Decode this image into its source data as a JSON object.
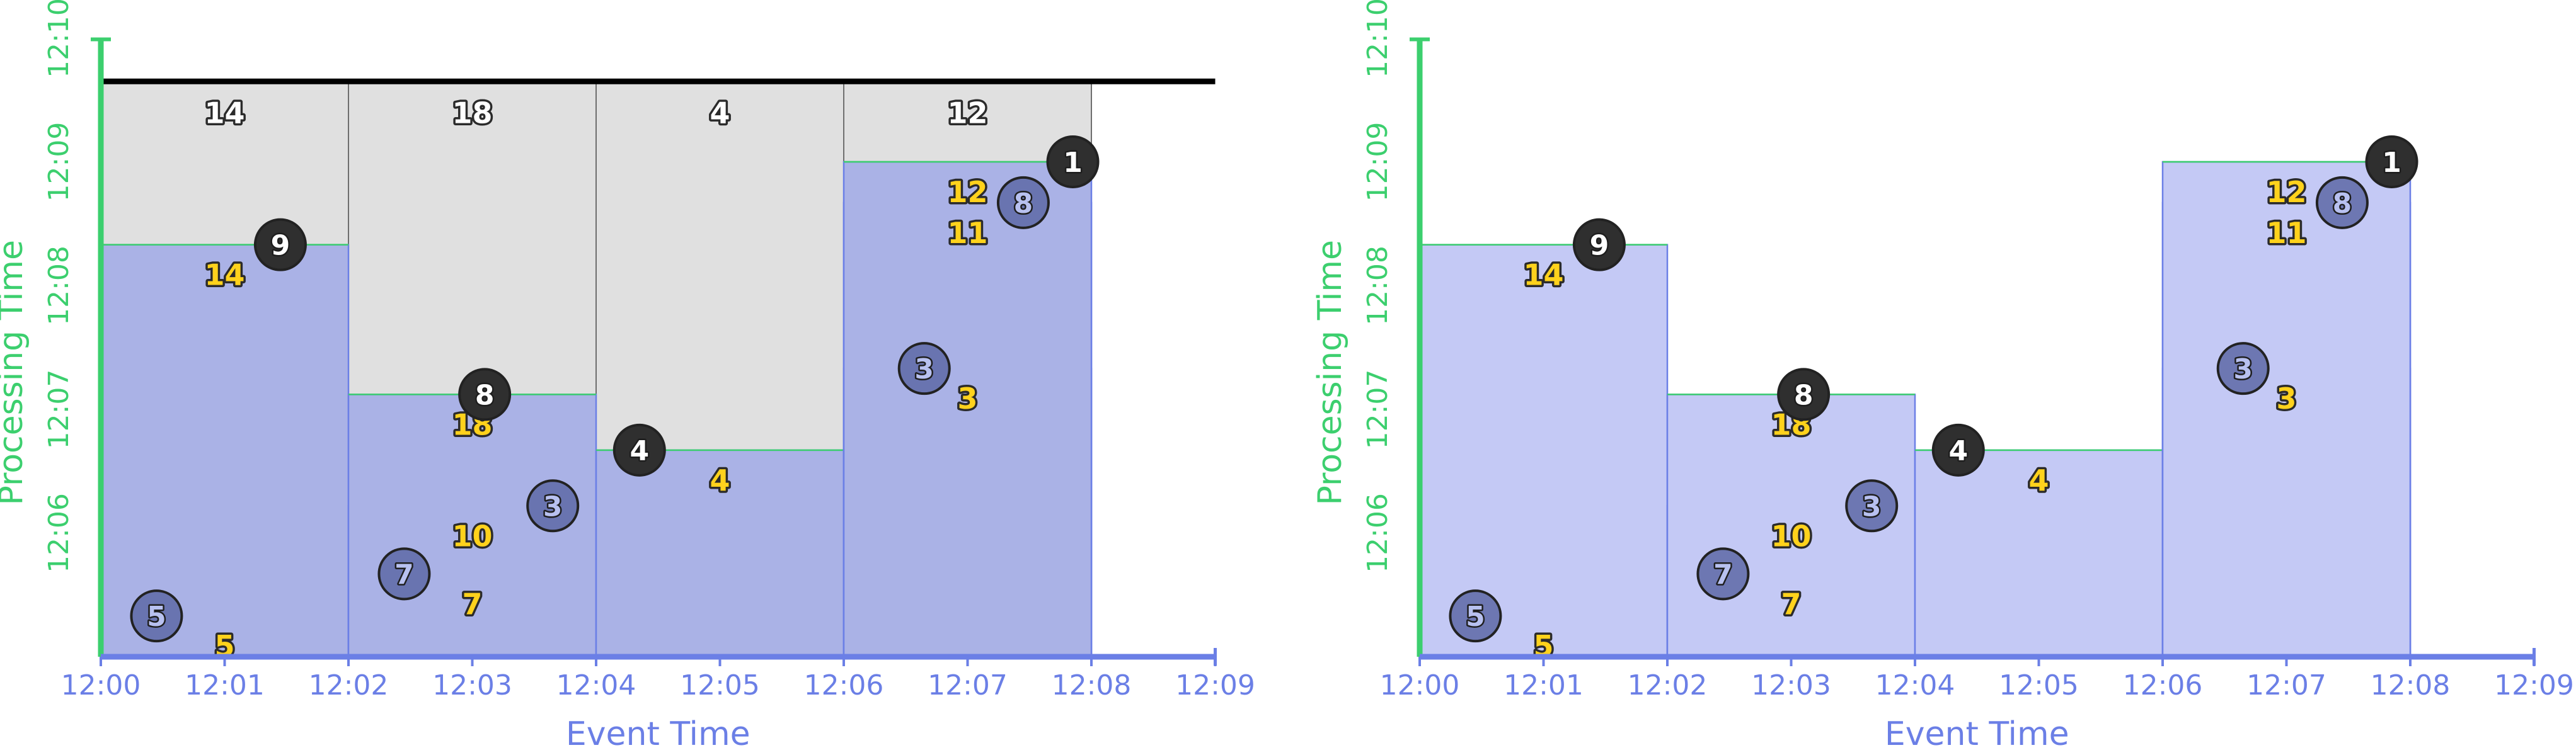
{
  "colors": {
    "processing_axis": "#3ccf6e",
    "event_axis": "#6b7fe6",
    "watermark": "#000000",
    "pane_done": "#e0e0e0",
    "pane_done_border": "#6e6e6e",
    "pane_fill_1": "#aab2e6",
    "pane_fill_2": "#949fe8",
    "pane_fill_3": "#8794ea",
    "pane_fill_right_1": "#c4c9f5",
    "pane_fill_right_2": "#9fa9ec",
    "pane_border": "#6b7fe6",
    "result_text": "#ffd21c",
    "onmark_circle": "#2f2f2f",
    "offmark_circle": "#5e68a6",
    "circle_text": "#ffffff"
  },
  "chart_data": [
    {
      "type": "area",
      "xlabel": "Event Time",
      "ylabel": "Processing Time",
      "x_ticks": [
        "12:00",
        "12:01",
        "12:02",
        "12:03",
        "12:04",
        "12:05",
        "12:06",
        "12:07",
        "12:08",
        "12:09"
      ],
      "y_ticks": [
        "12:06",
        "12:07",
        "12:08",
        "12:09",
        "12:10"
      ],
      "xlim_minutes": [
        0,
        9
      ],
      "ylim_minutes": [
        5,
        10
      ],
      "watermark_at": 9.65,
      "windows": [
        {
          "window": "12:00-12:02",
          "start": 0,
          "end": 2,
          "completed_label": "14",
          "levels": [
            {
              "time": 5.33,
              "sum": "5",
              "datum": "5",
              "datum_x": 0.45,
              "datum_on_time": false
            },
            {
              "time": 8.33,
              "sum": "14",
              "datum": "9",
              "datum_x": 1.45,
              "datum_on_time": true
            }
          ]
        },
        {
          "window": "12:02-12:04",
          "start": 2,
          "end": 4,
          "completed_label": "18",
          "levels": [
            {
              "time": 5.67,
              "sum": "7",
              "datum": "7",
              "datum_x": 2.45,
              "datum_on_time": false
            },
            {
              "time": 6.22,
              "sum": "10",
              "datum": "3",
              "datum_x": 3.65,
              "datum_on_time": false
            },
            {
              "time": 7.12,
              "sum": "18",
              "datum": "8",
              "datum_x": 3.1,
              "datum_on_time": true
            }
          ]
        },
        {
          "window": "12:04-12:06",
          "start": 4,
          "end": 6,
          "completed_label": "4",
          "levels": [
            {
              "time": 6.67,
              "sum": "4",
              "datum": "4",
              "datum_x": 4.35,
              "datum_on_time": true
            }
          ]
        },
        {
          "window": "12:06-12:08",
          "start": 6,
          "end": 8,
          "completed_label": "12",
          "levels": [
            {
              "time": 7.33,
              "sum": "3",
              "datum": "3",
              "datum_x": 6.65,
              "datum_on_time": false
            },
            {
              "time": 8.67,
              "sum": "11",
              "datum": "8",
              "datum_x": 7.45,
              "datum_on_time": false
            },
            {
              "time": 9.0,
              "sum": "12",
              "datum": "1",
              "datum_x": 7.85,
              "datum_on_time": true
            }
          ]
        }
      ]
    }
  ]
}
